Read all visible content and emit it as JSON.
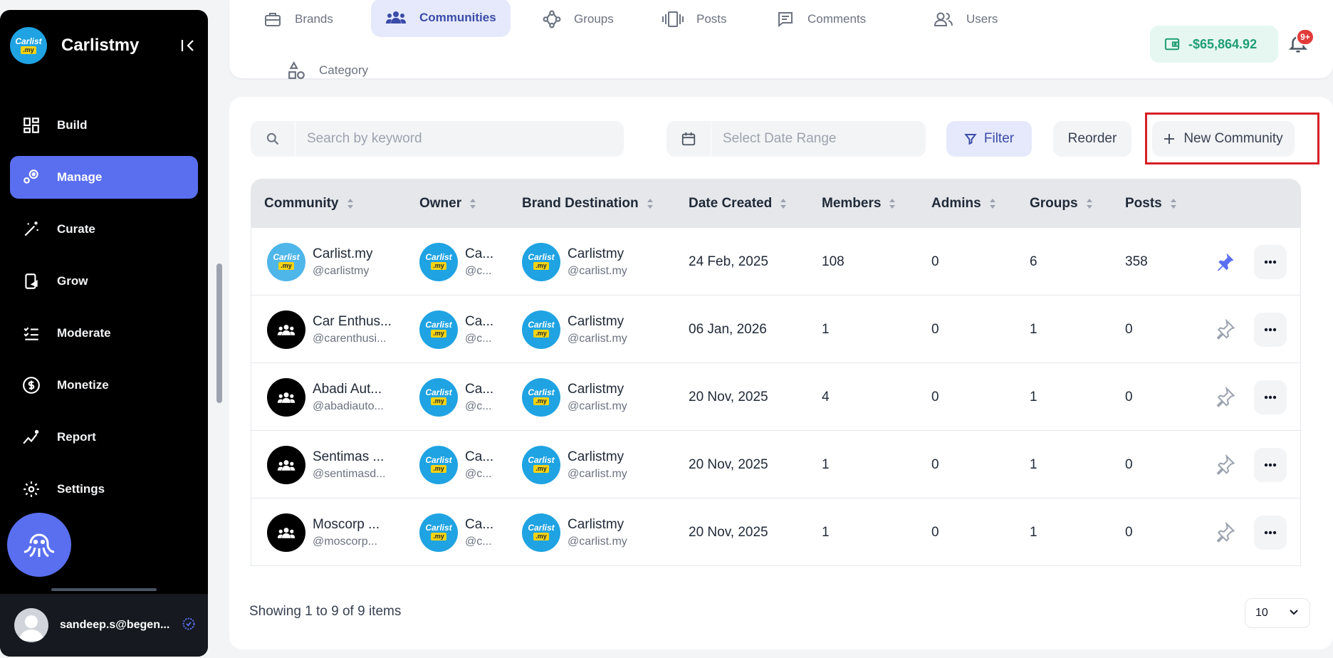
{
  "sidebar": {
    "brand_name": "Carlistmy",
    "logo": {
      "line1": "Carlist",
      "line2": ".my"
    },
    "items": [
      {
        "label": "Build",
        "icon": "dashboard-icon"
      },
      {
        "label": "Manage",
        "icon": "manage-icon",
        "active": true
      },
      {
        "label": "Curate",
        "icon": "magic-wand-icon"
      },
      {
        "label": "Grow",
        "icon": "grow-icon"
      },
      {
        "label": "Moderate",
        "icon": "checklist-icon"
      },
      {
        "label": "Monetize",
        "icon": "dollar-icon"
      },
      {
        "label": "Report",
        "icon": "chart-icon"
      },
      {
        "label": "Settings",
        "icon": "gear-icon"
      }
    ],
    "user_email": "sandeep.s@begen..."
  },
  "tabs": [
    {
      "label": "Brands",
      "icon": "briefcase-icon"
    },
    {
      "label": "Communities",
      "icon": "users-icon",
      "active": true
    },
    {
      "label": "Groups",
      "icon": "groups-icon"
    },
    {
      "label": "Posts",
      "icon": "posts-icon"
    },
    {
      "label": "Comments",
      "icon": "comment-icon"
    },
    {
      "label": "Users",
      "icon": "user-icon"
    },
    {
      "label": "Category",
      "icon": "category-icon"
    }
  ],
  "header": {
    "wallet_amount": "-$65,864.92",
    "notification_badge": "9+"
  },
  "toolbar": {
    "search_placeholder": "Search by keyword",
    "date_placeholder": "Select Date Range",
    "filter_label": "Filter",
    "reorder_label": "Reorder",
    "new_label": "New Community"
  },
  "table": {
    "headers": [
      "Community",
      "Owner",
      "Brand Destination",
      "Date Created",
      "Members",
      "Admins",
      "Groups",
      "Posts"
    ],
    "rows": [
      {
        "community": "Carlist.my",
        "handle": "@carlistmy",
        "owner": "Ca...",
        "owner_handle": "@c...",
        "brand": "Carlistmy",
        "brand_handle": "@carlist.my",
        "date": "24 Feb, 2025",
        "members": "108",
        "admins": "0",
        "groups": "6",
        "posts": "358",
        "pinned": true,
        "avatar": "brand"
      },
      {
        "community": "Car Enthus...",
        "handle": "@carenthusi...",
        "owner": "Ca...",
        "owner_handle": "@c...",
        "brand": "Carlistmy",
        "brand_handle": "@carlist.my",
        "date": "06 Jan, 2026",
        "members": "1",
        "admins": "0",
        "groups": "1",
        "posts": "0",
        "pinned": false,
        "avatar": "group"
      },
      {
        "community": "Abadi Aut...",
        "handle": "@abadiauto...",
        "owner": "Ca...",
        "owner_handle": "@c...",
        "brand": "Carlistmy",
        "brand_handle": "@carlist.my",
        "date": "20 Nov, 2025",
        "members": "4",
        "admins": "0",
        "groups": "1",
        "posts": "0",
        "pinned": false,
        "avatar": "group"
      },
      {
        "community": "Sentimas ...",
        "handle": "@sentimasd...",
        "owner": "Ca...",
        "owner_handle": "@c...",
        "brand": "Carlistmy",
        "brand_handle": "@carlist.my",
        "date": "20 Nov, 2025",
        "members": "1",
        "admins": "0",
        "groups": "1",
        "posts": "0",
        "pinned": false,
        "avatar": "group"
      },
      {
        "community": "Moscorp ...",
        "handle": "@moscorp...",
        "owner": "Ca...",
        "owner_handle": "@c...",
        "brand": "Carlistmy",
        "brand_handle": "@carlist.my",
        "date": "20 Nov, 2025",
        "members": "1",
        "admins": "0",
        "groups": "1",
        "posts": "0",
        "pinned": false,
        "avatar": "group"
      }
    ]
  },
  "footer": {
    "showing_text": "Showing 1 to 9 of 9 items",
    "page_size": "10"
  },
  "colors": {
    "accent": "#5a6ff0",
    "highlight_box": "#d71f26",
    "wallet_green": "#1f9d74"
  }
}
